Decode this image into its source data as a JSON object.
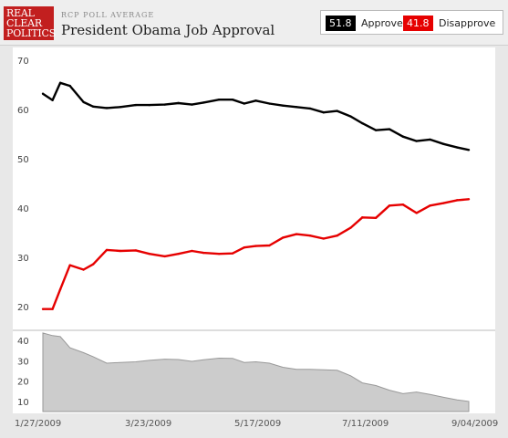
{
  "header": {
    "logo_lines": [
      "REAL",
      "CLEAR",
      "POLITICS"
    ],
    "kicker": "RCP POLL AVERAGE",
    "title": "President Obama Job Approval"
  },
  "legend": {
    "approve": {
      "value": "51.8",
      "label": "Approve",
      "color": "#000000"
    },
    "disapprove": {
      "value": "41.8",
      "label": "Disapprove",
      "color": "#e60000"
    }
  },
  "chart_data": [
    {
      "type": "line",
      "title": "President Obama Job Approval",
      "x_tick_labels": [
        "1/27/2009",
        "3/23/2009",
        "5/17/2009",
        "7/11/2009",
        "9/04/2009"
      ],
      "y_tick_labels": [
        "70",
        "60",
        "50",
        "40",
        "30",
        "20"
      ],
      "ylim": [
        15,
        70
      ],
      "grid": false,
      "legend_position": "top-right",
      "x": [
        "2009-01-27",
        "2009-02-01",
        "2009-02-05",
        "2009-02-10",
        "2009-02-17",
        "2009-02-22",
        "2009-03-01",
        "2009-03-08",
        "2009-03-16",
        "2009-03-23",
        "2009-03-31",
        "2009-04-07",
        "2009-04-14",
        "2009-04-20",
        "2009-04-28",
        "2009-05-05",
        "2009-05-11",
        "2009-05-17",
        "2009-05-24",
        "2009-05-31",
        "2009-06-07",
        "2009-06-14",
        "2009-06-21",
        "2009-06-28",
        "2009-07-05",
        "2009-07-11",
        "2009-07-18",
        "2009-07-25",
        "2009-08-01",
        "2009-08-08",
        "2009-08-15",
        "2009-08-22",
        "2009-08-29",
        "2009-09-04"
      ],
      "series": [
        {
          "name": "Approve",
          "color": "#000000",
          "values": [
            63.2,
            61.9,
            65.4,
            64.8,
            61.5,
            60.6,
            60.3,
            60.5,
            60.9,
            60.9,
            61.0,
            61.3,
            61.0,
            61.4,
            62.0,
            62.0,
            61.2,
            61.8,
            61.2,
            60.8,
            60.5,
            60.2,
            59.4,
            59.7,
            58.6,
            57.2,
            55.8,
            56.0,
            54.5,
            53.6,
            53.9,
            53.0,
            52.3,
            51.8
          ]
        },
        {
          "name": "Disapprove",
          "color": "#e60000",
          "values": [
            19.5,
            19.5,
            23.5,
            28.4,
            27.5,
            28.6,
            31.5,
            31.3,
            31.4,
            30.7,
            30.2,
            30.7,
            31.3,
            30.9,
            30.7,
            30.8,
            32.0,
            32.3,
            32.4,
            34.0,
            34.7,
            34.4,
            33.8,
            34.4,
            36.0,
            38.1,
            38.0,
            40.5,
            40.7,
            39.0,
            40.5,
            41.0,
            41.6,
            41.8
          ]
        }
      ]
    },
    {
      "type": "area",
      "title": "",
      "y_tick_labels": [
        "40",
        "30",
        "20",
        "10"
      ],
      "ylim": [
        5,
        45
      ],
      "color": "#cccccc",
      "x": [
        "2009-01-27",
        "2009-02-01",
        "2009-02-05",
        "2009-02-10",
        "2009-02-17",
        "2009-02-22",
        "2009-03-01",
        "2009-03-08",
        "2009-03-16",
        "2009-03-23",
        "2009-03-31",
        "2009-04-07",
        "2009-04-14",
        "2009-04-20",
        "2009-04-28",
        "2009-05-05",
        "2009-05-11",
        "2009-05-17",
        "2009-05-24",
        "2009-05-31",
        "2009-06-07",
        "2009-06-14",
        "2009-06-21",
        "2009-06-28",
        "2009-07-05",
        "2009-07-11",
        "2009-07-18",
        "2009-07-25",
        "2009-08-01",
        "2009-08-08",
        "2009-08-15",
        "2009-08-22",
        "2009-08-29",
        "2009-09-04"
      ],
      "values": [
        43.7,
        42.4,
        41.9,
        36.4,
        34.0,
        32.0,
        28.8,
        29.2,
        29.5,
        30.2,
        30.8,
        30.6,
        29.7,
        30.5,
        31.3,
        31.2,
        29.2,
        29.5,
        28.8,
        26.8,
        25.8,
        25.8,
        25.6,
        25.3,
        22.6,
        19.1,
        17.8,
        15.5,
        13.8,
        14.6,
        13.4,
        12.0,
        10.7,
        10.0
      ]
    }
  ]
}
